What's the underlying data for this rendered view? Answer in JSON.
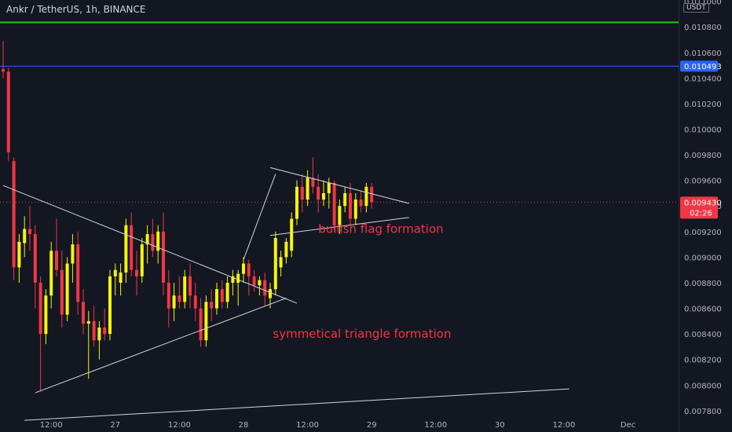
{
  "header": {
    "title": "Ankr / TetherUS, 1h, BINANCE",
    "currency": "USDT"
  },
  "colors": {
    "background": "#131722",
    "bull": "#f5f50a",
    "bear": "#f23645",
    "green_line": "#22c622",
    "blue_line": "#2962ff",
    "trend_line": "#d1d4dc",
    "price_badge": "#f23645",
    "blue_badge": "#2962ff",
    "annotation": "#f23645"
  },
  "chart_data": {
    "type": "candlestick",
    "y_axis": {
      "range": [
        0.00775,
        0.01101
      ],
      "ticks": [
        "0.011000",
        "0.010800",
        "0.010600",
        "0.010400",
        "0.010200",
        "0.010000",
        "0.009800",
        "0.009600",
        "0.009400",
        "0.009200",
        "0.009000",
        "0.008800",
        "0.008600",
        "0.008400",
        "0.008200",
        "0.008000",
        "0.007800"
      ]
    },
    "x_axis": {
      "ticks": [
        {
          "label": "12:00",
          "i": 9
        },
        {
          "label": "27",
          "i": 21
        },
        {
          "label": "12:00",
          "i": 33
        },
        {
          "label": "28",
          "i": 45
        },
        {
          "label": "12:00",
          "i": 57
        },
        {
          "label": "29",
          "i": 69
        },
        {
          "label": "12:00",
          "i": 81
        },
        {
          "label": "30",
          "i": 93
        },
        {
          "label": "12:00",
          "i": 105
        },
        {
          "label": "Dec",
          "i": 117
        }
      ]
    },
    "candles": [
      {
        "o": 0.01047,
        "h": 0.01069,
        "l": 0.0104,
        "c": 0.01045
      },
      {
        "o": 0.01045,
        "h": 0.01048,
        "l": 0.00975,
        "c": 0.00982
      },
      {
        "o": 0.00975,
        "h": 0.00978,
        "l": 0.00882,
        "c": 0.00892
      },
      {
        "o": 0.00892,
        "h": 0.00918,
        "l": 0.0088,
        "c": 0.00912
      },
      {
        "o": 0.00911,
        "h": 0.00932,
        "l": 0.009,
        "c": 0.00922
      },
      {
        "o": 0.00922,
        "h": 0.0094,
        "l": 0.00905,
        "c": 0.00918
      },
      {
        "o": 0.00918,
        "h": 0.00925,
        "l": 0.0086,
        "c": 0.0088
      },
      {
        "o": 0.0088,
        "h": 0.00885,
        "l": 0.00795,
        "c": 0.0084
      },
      {
        "o": 0.0084,
        "h": 0.00875,
        "l": 0.00832,
        "c": 0.0087
      },
      {
        "o": 0.0087,
        "h": 0.00912,
        "l": 0.0086,
        "c": 0.00905
      },
      {
        "o": 0.00905,
        "h": 0.0093,
        "l": 0.00885,
        "c": 0.0089
      },
      {
        "o": 0.0089,
        "h": 0.00905,
        "l": 0.00845,
        "c": 0.00855
      },
      {
        "o": 0.00855,
        "h": 0.009,
        "l": 0.0085,
        "c": 0.00895
      },
      {
        "o": 0.00895,
        "h": 0.00918,
        "l": 0.0088,
        "c": 0.0091
      },
      {
        "o": 0.0091,
        "h": 0.0092,
        "l": 0.00855,
        "c": 0.00865
      },
      {
        "o": 0.00865,
        "h": 0.00875,
        "l": 0.0084,
        "c": 0.00848
      },
      {
        "o": 0.00848,
        "h": 0.00858,
        "l": 0.00805,
        "c": 0.0085
      },
      {
        "o": 0.0085,
        "h": 0.00862,
        "l": 0.0083,
        "c": 0.00835
      },
      {
        "o": 0.00835,
        "h": 0.0085,
        "l": 0.0082,
        "c": 0.00845
      },
      {
        "o": 0.00845,
        "h": 0.0086,
        "l": 0.00835,
        "c": 0.0084
      },
      {
        "o": 0.0084,
        "h": 0.0089,
        "l": 0.00835,
        "c": 0.00885
      },
      {
        "o": 0.00885,
        "h": 0.00895,
        "l": 0.0087,
        "c": 0.0089
      },
      {
        "o": 0.0088,
        "h": 0.00895,
        "l": 0.0087,
        "c": 0.00888
      },
      {
        "o": 0.00888,
        "h": 0.0093,
        "l": 0.0088,
        "c": 0.00925
      },
      {
        "o": 0.00925,
        "h": 0.00935,
        "l": 0.00885,
        "c": 0.0089
      },
      {
        "o": 0.0089,
        "h": 0.00905,
        "l": 0.0087,
        "c": 0.00885
      },
      {
        "o": 0.00885,
        "h": 0.00915,
        "l": 0.0088,
        "c": 0.0091
      },
      {
        "o": 0.0091,
        "h": 0.00925,
        "l": 0.00895,
        "c": 0.00918
      },
      {
        "o": 0.00918,
        "h": 0.0093,
        "l": 0.009,
        "c": 0.00905
      },
      {
        "o": 0.00905,
        "h": 0.00925,
        "l": 0.00895,
        "c": 0.0092
      },
      {
        "o": 0.0092,
        "h": 0.00935,
        "l": 0.0087,
        "c": 0.0088
      },
      {
        "o": 0.0088,
        "h": 0.0089,
        "l": 0.00845,
        "c": 0.0086
      },
      {
        "o": 0.0086,
        "h": 0.0088,
        "l": 0.0085,
        "c": 0.0087
      },
      {
        "o": 0.0087,
        "h": 0.00885,
        "l": 0.0086,
        "c": 0.00865
      },
      {
        "o": 0.00865,
        "h": 0.0089,
        "l": 0.0086,
        "c": 0.00885
      },
      {
        "o": 0.00885,
        "h": 0.00895,
        "l": 0.0086,
        "c": 0.0087
      },
      {
        "o": 0.0087,
        "h": 0.0088,
        "l": 0.0085,
        "c": 0.0086
      },
      {
        "o": 0.0086,
        "h": 0.00868,
        "l": 0.0083,
        "c": 0.00835
      },
      {
        "o": 0.00835,
        "h": 0.0087,
        "l": 0.0083,
        "c": 0.00865
      },
      {
        "o": 0.00865,
        "h": 0.00875,
        "l": 0.0085,
        "c": 0.0086
      },
      {
        "o": 0.0086,
        "h": 0.0088,
        "l": 0.00855,
        "c": 0.00875
      },
      {
        "o": 0.00875,
        "h": 0.00882,
        "l": 0.0086,
        "c": 0.00865
      },
      {
        "o": 0.00865,
        "h": 0.00885,
        "l": 0.0086,
        "c": 0.0088
      },
      {
        "o": 0.0088,
        "h": 0.0089,
        "l": 0.0087,
        "c": 0.00885
      },
      {
        "o": 0.0088,
        "h": 0.0089,
        "l": 0.00862,
        "c": 0.00887
      },
      {
        "o": 0.00887,
        "h": 0.009,
        "l": 0.0088,
        "c": 0.00895
      },
      {
        "o": 0.00895,
        "h": 0.00898,
        "l": 0.0087,
        "c": 0.00885
      },
      {
        "o": 0.00885,
        "h": 0.0089,
        "l": 0.00873,
        "c": 0.00878
      },
      {
        "o": 0.00878,
        "h": 0.00885,
        "l": 0.0087,
        "c": 0.00882
      },
      {
        "o": 0.00882,
        "h": 0.00888,
        "l": 0.00862,
        "c": 0.0087
      },
      {
        "o": 0.00868,
        "h": 0.0088,
        "l": 0.0086,
        "c": 0.00875
      },
      {
        "o": 0.00875,
        "h": 0.0092,
        "l": 0.0087,
        "c": 0.00915
      },
      {
        "o": 0.00892,
        "h": 0.00905,
        "l": 0.00885,
        "c": 0.009
      },
      {
        "o": 0.009,
        "h": 0.00915,
        "l": 0.00895,
        "c": 0.00912
      },
      {
        "o": 0.00905,
        "h": 0.00935,
        "l": 0.009,
        "c": 0.0093
      },
      {
        "o": 0.0093,
        "h": 0.0096,
        "l": 0.00925,
        "c": 0.00955
      },
      {
        "o": 0.00955,
        "h": 0.00965,
        "l": 0.00935,
        "c": 0.00945
      },
      {
        "o": 0.00945,
        "h": 0.00968,
        "l": 0.0094,
        "c": 0.00962
      },
      {
        "o": 0.00962,
        "h": 0.00978,
        "l": 0.0095,
        "c": 0.00955
      },
      {
        "o": 0.00955,
        "h": 0.00965,
        "l": 0.00935,
        "c": 0.00945
      },
      {
        "o": 0.00945,
        "h": 0.0096,
        "l": 0.0094,
        "c": 0.0095
      },
      {
        "o": 0.0095,
        "h": 0.00962,
        "l": 0.00938,
        "c": 0.00958
      },
      {
        "o": 0.00958,
        "h": 0.0096,
        "l": 0.0092,
        "c": 0.00925
      },
      {
        "o": 0.00925,
        "h": 0.00945,
        "l": 0.00918,
        "c": 0.0094
      },
      {
        "o": 0.0094,
        "h": 0.00955,
        "l": 0.00935,
        "c": 0.0095
      },
      {
        "o": 0.0095,
        "h": 0.00958,
        "l": 0.00925,
        "c": 0.0093
      },
      {
        "o": 0.0093,
        "h": 0.0095,
        "l": 0.00925,
        "c": 0.00945
      },
      {
        "o": 0.00945,
        "h": 0.00952,
        "l": 0.00935,
        "c": 0.0094
      },
      {
        "o": 0.0094,
        "h": 0.00958,
        "l": 0.00935,
        "c": 0.00955
      },
      {
        "o": 0.00955,
        "h": 0.00958,
        "l": 0.00938,
        "c": 0.00943
      }
    ],
    "lines": [
      {
        "name": "symmetrical-triangle-upper",
        "from": [
          0,
          0.00956
        ],
        "to": [
          55,
          0.00864
        ]
      },
      {
        "name": "symmetrical-triangle-lower",
        "from": [
          6,
          0.00794
        ],
        "to": [
          53,
          0.00868
        ]
      },
      {
        "name": "flag-upper",
        "from": [
          50,
          0.0097
        ],
        "to": [
          76,
          0.00942
        ]
      },
      {
        "name": "flag-lower",
        "from": [
          50,
          0.00917
        ],
        "to": [
          76,
          0.00931
        ]
      },
      {
        "name": "flag-pole",
        "from": [
          45,
          0.00898
        ],
        "to": [
          51,
          0.00965
        ]
      },
      {
        "name": "long-support",
        "from": [
          4,
          0.007725
        ],
        "to": [
          106,
          0.00797
        ]
      }
    ],
    "green_line_value": 0.010835,
    "blue_line_value": 0.010493,
    "current_price": {
      "value": "0.009430",
      "level": 0.00943,
      "countdown": "02:26"
    },
    "blue_level_label": "0.010493",
    "annotations": [
      {
        "text": "bullish flag formation",
        "i": 59,
        "y": 0.00919
      },
      {
        "text": "symmetical triangle formation",
        "i": 50.5,
        "y": 0.00837
      }
    ]
  }
}
